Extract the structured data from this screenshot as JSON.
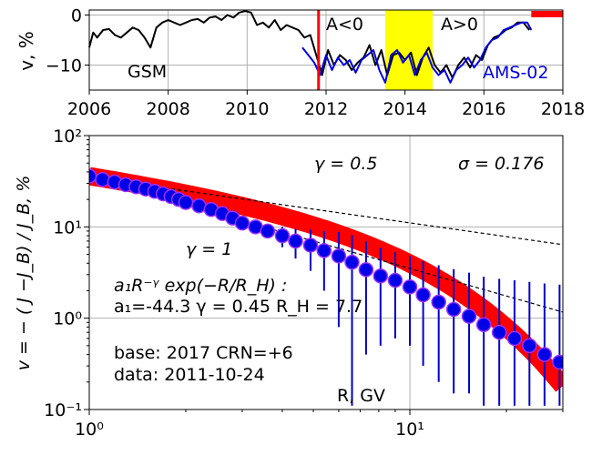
{
  "chart_data": [
    {
      "type": "line",
      "title": "",
      "xlabel": "",
      "ylabel": "v, %",
      "xlim": [
        2006,
        2018
      ],
      "ylim": [
        -15,
        1
      ],
      "x_ticks": [
        2006,
        2008,
        2010,
        2012,
        2014,
        2016,
        2018
      ],
      "y_ticks": [
        0,
        -10
      ],
      "x_tick_labels": [
        "2006",
        "2008",
        "2010",
        "2012",
        "2014",
        "2016",
        "2018"
      ],
      "y_tick_labels": [
        "0",
        "−10"
      ],
      "grid": true,
      "annotations": {
        "left": "GSM",
        "a_neg": "A<0",
        "a_pos": "A>0",
        "ams": "AMS-02"
      },
      "event_line_x": 2011.81,
      "highlight_band": [
        2013.5,
        2014.7
      ],
      "base_bar": [
        2017.2,
        2018
      ],
      "series": [
        {
          "name": "GSM",
          "color": "#000000",
          "x": [
            2006.0,
            2006.1,
            2006.2,
            2006.35,
            2006.5,
            2006.65,
            2006.8,
            2006.95,
            2007.1,
            2007.25,
            2007.4,
            2007.55,
            2007.7,
            2007.85,
            2008.0,
            2008.15,
            2008.3,
            2008.45,
            2008.6,
            2008.75,
            2008.9,
            2009.05,
            2009.2,
            2009.35,
            2009.5,
            2009.65,
            2009.8,
            2009.95,
            2010.1,
            2010.25,
            2010.4,
            2010.55,
            2010.7,
            2010.85,
            2011.0,
            2011.15,
            2011.3,
            2011.45,
            2011.6,
            2011.75,
            2011.9,
            2012.05,
            2012.2,
            2012.35,
            2012.5,
            2012.65,
            2012.8,
            2012.95,
            2013.1,
            2013.25,
            2013.4,
            2013.55,
            2013.7,
            2013.85,
            2014.0,
            2014.15,
            2014.3,
            2014.45,
            2014.6,
            2014.75,
            2014.9,
            2015.05,
            2015.2,
            2015.35,
            2015.5,
            2015.65,
            2015.8,
            2015.95,
            2016.1,
            2016.25,
            2016.4,
            2016.55,
            2016.7,
            2016.85,
            2017.0,
            2017.15
          ],
          "y": [
            -6.5,
            -3.5,
            -4.5,
            -3.0,
            -2.8,
            -4.0,
            -4.5,
            -3.5,
            -2.5,
            -3.0,
            -4.5,
            -6.5,
            -2.5,
            -1.5,
            -1.0,
            -1.5,
            -2.0,
            -1.5,
            -1.0,
            -0.8,
            -1.5,
            -0.5,
            -0.3,
            -1.0,
            0.0,
            -0.5,
            0.5,
            0.8,
            0.5,
            -2.0,
            -1.5,
            -2.5,
            -1.0,
            -3.0,
            -2.0,
            -2.5,
            -3.0,
            -4.5,
            -4.0,
            -8.0,
            -12.0,
            -7.0,
            -10.0,
            -8.0,
            -9.0,
            -11.0,
            -9.5,
            -8.5,
            -6.0,
            -10.0,
            -7.0,
            -12.0,
            -8.0,
            -7.5,
            -9.0,
            -7.5,
            -12.0,
            -8.5,
            -6.5,
            -10.0,
            -11.5,
            -10.0,
            -12.5,
            -10.0,
            -8.5,
            -10.5,
            -8.0,
            -9.0,
            -6.0,
            -4.5,
            -4.0,
            -3.0,
            -2.5,
            -1.5,
            -1.5,
            -3.0
          ]
        },
        {
          "name": "AMS-02",
          "color": "#0000e0",
          "x": [
            2011.4,
            2011.55,
            2011.7,
            2011.85,
            2012.0,
            2012.15,
            2012.3,
            2012.45,
            2012.6,
            2012.75,
            2012.9,
            2013.05,
            2013.2,
            2013.35,
            2013.5,
            2013.65,
            2013.8,
            2013.95,
            2014.1,
            2014.25,
            2014.4,
            2014.55,
            2014.7,
            2014.85,
            2015.0,
            2015.15,
            2015.3,
            2015.45,
            2015.6,
            2015.75,
            2015.9,
            2016.05,
            2016.2,
            2016.35,
            2016.5,
            2016.65,
            2016.8,
            2016.95,
            2017.1,
            2017.2
          ],
          "y": [
            -6.5,
            -8.0,
            -9.5,
            -12.0,
            -8.0,
            -11.0,
            -8.5,
            -10.0,
            -9.0,
            -11.5,
            -9.0,
            -8.0,
            -7.0,
            -11.0,
            -13.5,
            -8.0,
            -7.0,
            -9.5,
            -8.0,
            -12.0,
            -9.0,
            -7.5,
            -10.5,
            -12.0,
            -11.0,
            -13.5,
            -11.0,
            -10.0,
            -8.5,
            -10.5,
            -9.0,
            -6.5,
            -5.0,
            -4.5,
            -3.0,
            -2.5,
            -2.0,
            -1.5,
            -1.5,
            -3.0
          ]
        }
      ]
    },
    {
      "type": "scatter",
      "title": "",
      "xlabel": "R, GV",
      "ylabel": "v = − ( J −J_B) / J_B, %",
      "xscale": "log",
      "yscale": "log",
      "xlim": [
        1.0,
        30.0
      ],
      "ylim": [
        0.1,
        100.0
      ],
      "grid": true,
      "annotations": {
        "gamma_half": "γ = 0.5",
        "sigma": "σ = 0.176",
        "gamma_one": "γ = 1",
        "formula": "a₁R⁻ᵞ exp(−R/R_H) :",
        "params": "a₁=-44.3  γ = 0.45  R_H =  7.7",
        "base": "base: 2017   CRN=+6",
        "date": "data: 2011-10-24"
      },
      "fit": {
        "a1": -44.3,
        "gamma": 0.45,
        "RH": 7.7
      },
      "reference_lines": [
        {
          "name": "γ=0.5",
          "slope": -0.5,
          "at_R1": 35
        },
        {
          "name": "γ=1",
          "slope": -1.0,
          "at_R1": 35
        }
      ],
      "x": [
        1.0,
        1.1,
        1.2,
        1.3,
        1.4,
        1.5,
        1.6,
        1.7,
        1.8,
        1.9,
        2.0,
        2.2,
        2.4,
        2.6,
        2.8,
        3.0,
        3.3,
        3.6,
        4.0,
        4.4,
        4.9,
        5.4,
        6.0,
        6.6,
        7.3,
        8.1,
        9.0,
        10.0,
        11.0,
        12.3,
        13.7,
        15.3,
        17.0,
        19.0,
        21.2,
        23.6,
        26.3,
        29.3
      ],
      "y": [
        36,
        33,
        31,
        29,
        27.5,
        26,
        24.5,
        23,
        21.5,
        20,
        18.5,
        17,
        15.5,
        14,
        12.5,
        11,
        10,
        9,
        8,
        7,
        6.3,
        5.5,
        4.8,
        4.1,
        3.4,
        2.9,
        2.6,
        2.2,
        1.8,
        1.5,
        1.25,
        1.05,
        0.85,
        0.7,
        0.6,
        0.5,
        0.4,
        0.33
      ],
      "yerr_low": [
        0.6,
        0.6,
        0.6,
        0.6,
        0.6,
        0.6,
        0.6,
        0.6,
        0.6,
        0.6,
        0.6,
        0.6,
        0.6,
        0.6,
        0.6,
        0.6,
        1.0,
        1.5,
        2.0,
        2.5,
        3.0,
        3.5,
        4.0,
        4.0,
        3.0,
        2.4,
        2.0,
        1.7,
        1.5,
        1.3,
        1.1,
        0.9,
        0.8,
        0.65,
        0.5,
        0.4,
        0.3,
        0.25
      ],
      "yerr_high": [
        0.6,
        0.6,
        0.6,
        0.6,
        0.6,
        0.6,
        0.6,
        0.6,
        0.6,
        0.6,
        0.6,
        0.6,
        0.6,
        0.6,
        0.6,
        0.6,
        1.0,
        1.5,
        2.0,
        2.5,
        3.0,
        3.5,
        4.0,
        4.0,
        3.5,
        3.0,
        2.7,
        2.6,
        2.4,
        2.3,
        2.2,
        2.1,
        2.0,
        2.0,
        2.0,
        2.0,
        2.0,
        2.0
      ],
      "x_ticks": [
        1,
        10
      ],
      "y_ticks": [
        0.1,
        1,
        10,
        100
      ],
      "x_tick_labels": [
        "10⁰",
        "10¹"
      ],
      "y_tick_labels": [
        "10⁻¹",
        "10⁰",
        "10¹",
        "10²"
      ]
    }
  ],
  "colors": {
    "gsm": "#000000",
    "ams": "#0000e0",
    "event_line": "#ff0000",
    "band": "#ffff00",
    "base_bar": "#ff0000",
    "fit_band": "#ff0000",
    "marker_fill": "#0000e6",
    "marker_edge": "#9b30ff",
    "errorbar": "#0000cc",
    "grid": "#b0b0b0"
  }
}
